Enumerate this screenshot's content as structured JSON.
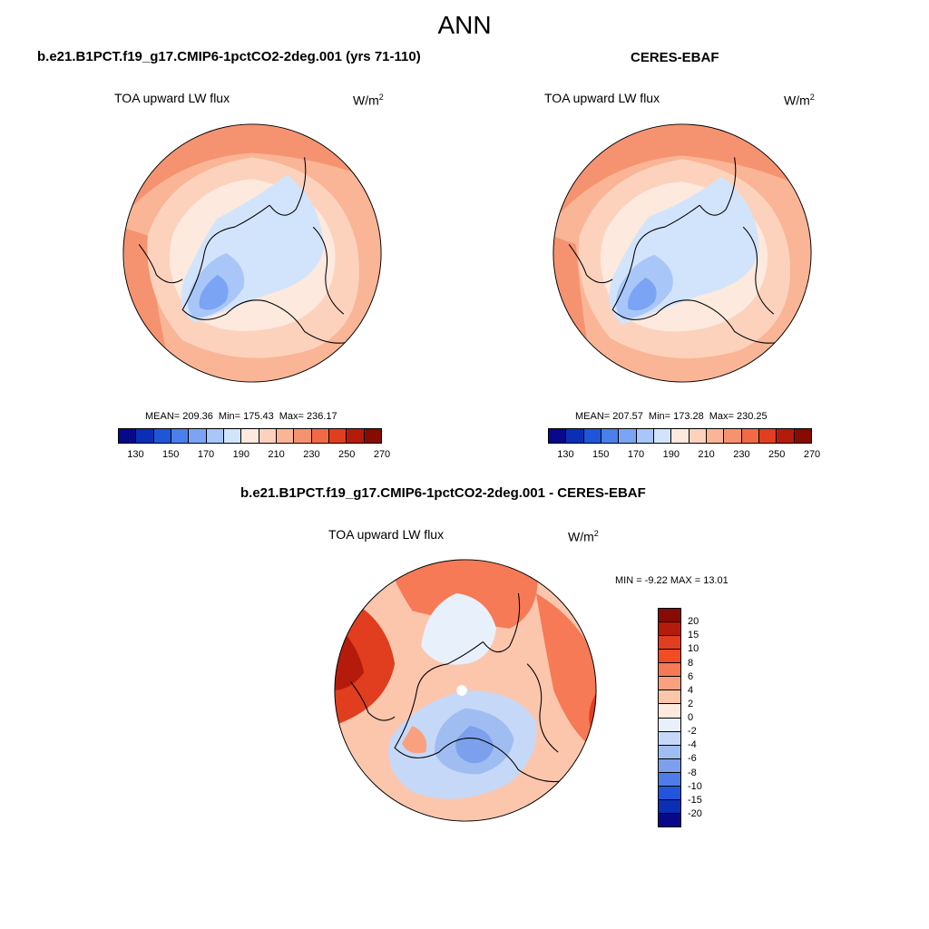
{
  "title": "ANN",
  "units_base": "W/m",
  "units_exp": "2",
  "panels": {
    "model": {
      "title": "b.e21.B1PCT.f19_g17.CMIP6-1pctCO2-2deg.001 (yrs 71-110)",
      "variable": "TOA upward LW flux",
      "mean_text": "MEAN= 209.36",
      "min_text": "Min= 175.43",
      "max_text": "Max= 236.17"
    },
    "obs": {
      "title": "CERES-EBAF",
      "variable": "TOA upward LW flux",
      "mean_text": "MEAN= 207.57",
      "min_text": "Min= 173.28",
      "max_text": "Max= 230.25"
    },
    "diff": {
      "title": "b.e21.B1PCT.f19_g17.CMIP6-1pctCO2-2deg.001 - CERES-EBAF",
      "variable": "TOA upward LW flux",
      "minmax_text": "MIN =  -9.22 MAX =  13.01"
    }
  },
  "map_projection": "north-polar-stereographic",
  "field_colorbar": {
    "labels": [
      "130",
      "150",
      "170",
      "190",
      "210",
      "230",
      "250",
      "270"
    ],
    "colors": [
      "#08088a",
      "#0b2fb4",
      "#1f56d8",
      "#4a7fec",
      "#7ca4f4",
      "#a8c6f8",
      "#d2e4fb",
      "#fde9dd",
      "#fcd2bc",
      "#f9b596",
      "#f59370",
      "#f16a45",
      "#e03e1e",
      "#b51b0b",
      "#870a03"
    ]
  },
  "diff_colorbar": {
    "labels": [
      "20",
      "15",
      "10",
      "8",
      "6",
      "4",
      "2",
      "0",
      "-2",
      "-4",
      "-6",
      "-8",
      "-10",
      "-15",
      "-20"
    ],
    "colors": [
      "#870a03",
      "#b51b0b",
      "#e03e1e",
      "#f24c22",
      "#f57a55",
      "#f9a17f",
      "#fcc6ad",
      "#fde9dd",
      "#e8f0fc",
      "#c5d8f7",
      "#a0bdf2",
      "#7ca0ec",
      "#4f7ce6",
      "#2255dc",
      "#0b2fb4",
      "#08088a"
    ]
  }
}
